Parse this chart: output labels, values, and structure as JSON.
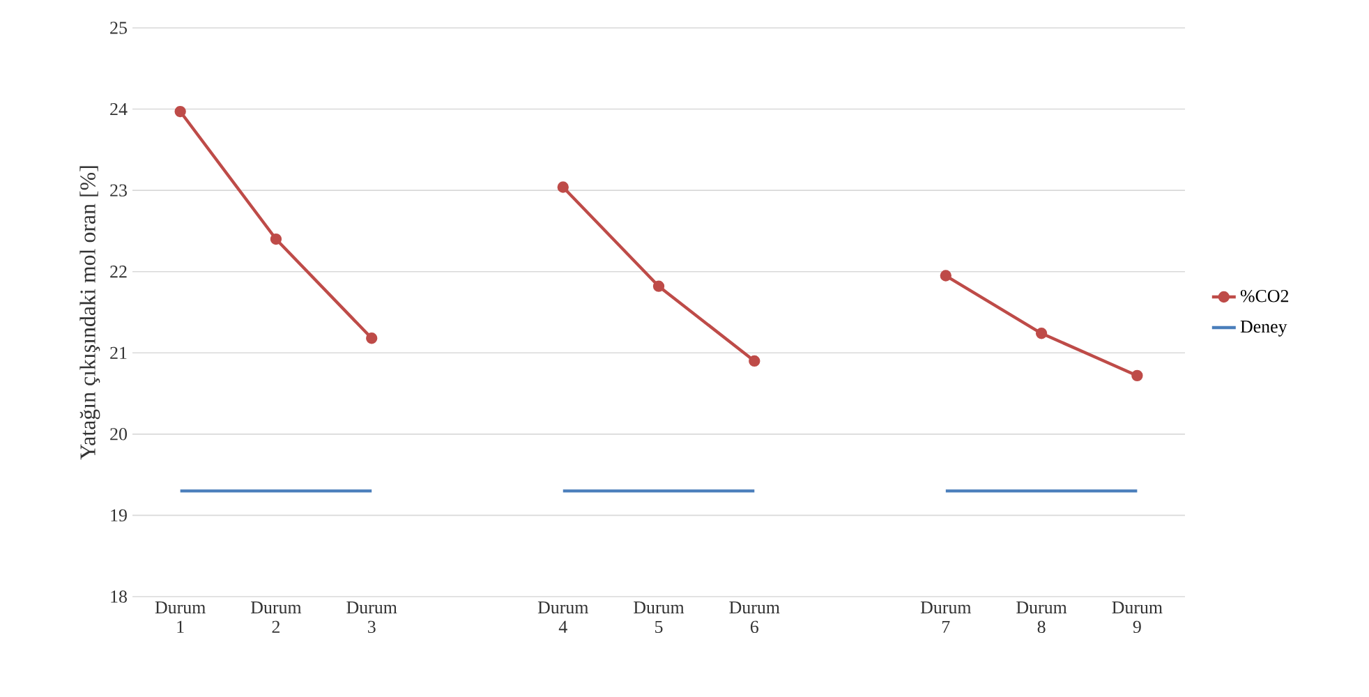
{
  "chart_data": {
    "type": "line",
    "ylabel": "Yatağın çıkışındaki mol oran [%]",
    "categories": [
      "Durum 1",
      "Durum 2",
      "Durum 3",
      null,
      "Durum 4",
      "Durum 5",
      "Durum 6",
      null,
      "Durum 7",
      "Durum 8",
      "Durum 9"
    ],
    "series": [
      {
        "name": "%CO2",
        "color": "#be4b48",
        "marker": "circle",
        "values": [
          23.97,
          22.4,
          21.18,
          null,
          23.04,
          21.82,
          20.9,
          null,
          21.95,
          21.24,
          20.72
        ]
      },
      {
        "name": "Deney",
        "color": "#4a7ebb",
        "marker": "none",
        "values": [
          19.3,
          19.3,
          19.3,
          null,
          19.3,
          19.3,
          19.3,
          null,
          19.3,
          19.3,
          19.3
        ]
      }
    ],
    "ylim": [
      18,
      25
    ],
    "yticks": [
      18,
      19,
      20,
      21,
      22,
      23,
      24,
      25
    ],
    "grid": "y",
    "legend": "right"
  }
}
